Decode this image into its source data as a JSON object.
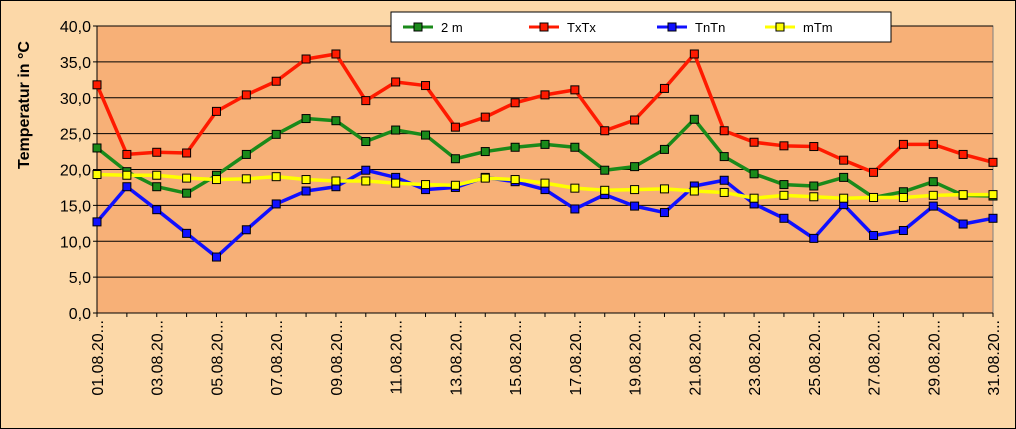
{
  "chart_data": {
    "type": "line",
    "title": "",
    "xlabel": "",
    "ylabel": "Temperatur in °C",
    "ylim": [
      0,
      40
    ],
    "yticks": [
      "0,0",
      "5,0",
      "10,0",
      "15,0",
      "20,0",
      "25,0",
      "30,0",
      "35,0",
      "40,0"
    ],
    "grid": "horizontal",
    "legend_position": "top-right",
    "x_tick_labels": [
      "01.08.20...",
      "03.08.20...",
      "05.08.20...",
      "07.08.20...",
      "09.08.20...",
      "11.08.20...",
      "13.08.20...",
      "15.08.20...",
      "17.08.20...",
      "19.08.20...",
      "21.08.20...",
      "23.08.20...",
      "25.08.20...",
      "27.08.20...",
      "29.08.20...",
      "31.08.20..."
    ],
    "x": [
      "01.08",
      "02.08",
      "03.08",
      "04.08",
      "05.08",
      "06.08",
      "07.08",
      "08.08",
      "09.08",
      "10.08",
      "11.08",
      "12.08",
      "13.08",
      "14.08",
      "15.08",
      "16.08",
      "17.08",
      "18.08",
      "19.08",
      "20.08",
      "21.08",
      "22.08",
      "23.08",
      "24.08",
      "25.08",
      "26.08",
      "27.08",
      "28.08",
      "29.08",
      "30.08",
      "31.08"
    ],
    "series": [
      {
        "name": "2 m",
        "color": "#1a8a1a",
        "marker_fill": "#1a8a1a",
        "values": [
          23.0,
          19.7,
          17.6,
          16.7,
          19.2,
          22.1,
          24.9,
          27.1,
          26.8,
          23.9,
          25.5,
          24.8,
          21.5,
          22.5,
          23.1,
          23.5,
          23.1,
          19.9,
          20.4,
          22.8,
          27.0,
          21.8,
          19.4,
          17.9,
          17.7,
          18.9,
          16.1,
          16.9,
          18.3,
          16.4,
          16.3
        ]
      },
      {
        "name": "TxTx",
        "color": "#ff1a00",
        "marker_fill": "#ff1a00",
        "values": [
          31.8,
          22.1,
          22.4,
          22.3,
          28.1,
          30.4,
          32.3,
          35.4,
          36.1,
          29.6,
          32.2,
          31.7,
          25.9,
          27.3,
          29.3,
          30.4,
          31.1,
          25.4,
          26.9,
          31.3,
          36.1,
          25.4,
          23.8,
          23.3,
          23.2,
          21.3,
          19.6,
          23.5,
          23.5,
          22.1,
          21.0
        ]
      },
      {
        "name": "TnTn",
        "color": "#1010ff",
        "marker_fill": "#1010ff",
        "values": [
          12.7,
          17.6,
          14.4,
          11.1,
          7.8,
          11.6,
          15.2,
          17.0,
          17.6,
          19.9,
          18.9,
          17.2,
          17.5,
          18.9,
          18.3,
          17.2,
          14.5,
          16.5,
          14.9,
          14.0,
          17.7,
          18.5,
          15.2,
          13.2,
          10.4,
          15.1,
          10.8,
          11.5,
          14.9,
          12.4,
          13.2
        ]
      },
      {
        "name": "mTm",
        "color": "#ffff00",
        "marker_fill": "#ffff00",
        "values": [
          19.3,
          19.2,
          19.2,
          18.8,
          18.6,
          18.7,
          19.0,
          18.6,
          18.4,
          18.4,
          18.1,
          17.9,
          17.8,
          18.8,
          18.6,
          18.1,
          17.4,
          17.1,
          17.2,
          17.3,
          17.0,
          16.8,
          16.0,
          16.4,
          16.2,
          16.0,
          16.1,
          16.1,
          16.4,
          16.5,
          16.5
        ]
      }
    ]
  }
}
